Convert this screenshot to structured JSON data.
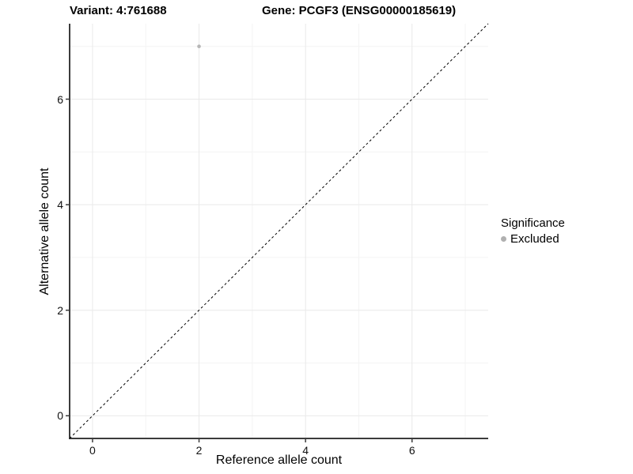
{
  "chart_data": {
    "type": "scatter",
    "title_left": "Variant: 4:761688",
    "title_right": "Gene: PCGF3 (ENSG00000185619)",
    "xlabel": "Reference allele count",
    "ylabel": "Alternative allele count",
    "xlim": [
      -0.43,
      7.43
    ],
    "ylim": [
      -0.43,
      7.43
    ],
    "x_ticks": [
      0,
      2,
      4,
      6
    ],
    "y_ticks": [
      0,
      2,
      4,
      6
    ],
    "x_minor_ticks": [
      1,
      3,
      5,
      7
    ],
    "y_minor_ticks": [
      1,
      3,
      5,
      7
    ],
    "grid": true,
    "series": [
      {
        "name": "Excluded",
        "color": "#b6b6b6",
        "points": [
          {
            "x": 2,
            "y": 7
          }
        ]
      }
    ],
    "reference_line": {
      "equation": "y = x",
      "style": "dashed",
      "color": "#000000",
      "from": [
        -0.43,
        -0.43
      ],
      "to": [
        7.43,
        7.43
      ]
    },
    "legend": {
      "title": "Significance",
      "position": "right",
      "items": [
        {
          "label": "Excluded",
          "color": "#b0b0b0"
        }
      ]
    },
    "colors": {
      "background": "#ffffff",
      "grid_major": "#e9e9e9",
      "grid_minor": "#f4f4f4",
      "axis_line": "#3c3c3c",
      "tick_mark": "#3c3c3c",
      "text": "#000000"
    }
  }
}
